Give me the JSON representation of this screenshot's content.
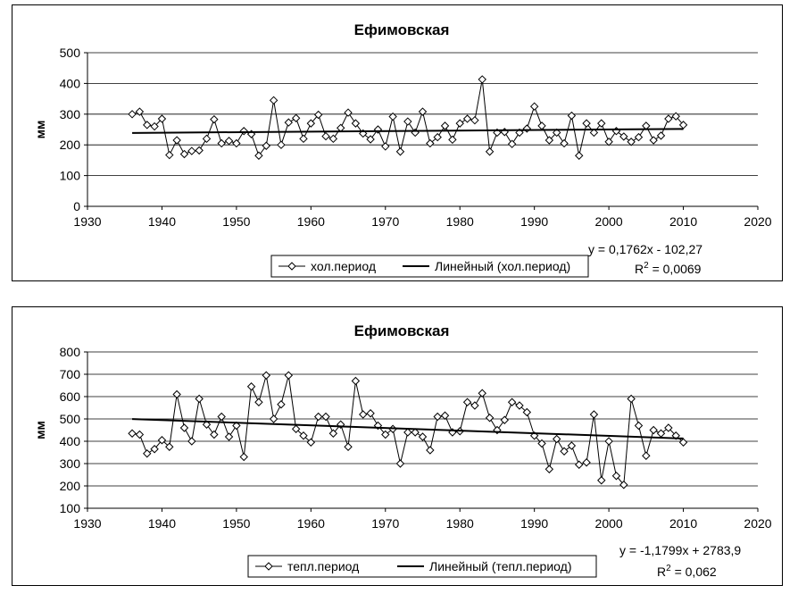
{
  "chart_data": [
    {
      "type": "line",
      "title": "Ефимовская",
      "ylabel": "мм",
      "xlabel": "",
      "xlim": [
        1930,
        2020
      ],
      "ylim": [
        0,
        500
      ],
      "x_ticks": [
        1930,
        1940,
        1950,
        1960,
        1970,
        1980,
        1990,
        2000,
        2010,
        2020
      ],
      "y_ticks": [
        0,
        100,
        200,
        300,
        400,
        500
      ],
      "grid": "horizontal",
      "legend": "bottom-center",
      "series": [
        {
          "name": "хол.период",
          "marker": "diamond",
          "color": "#000000",
          "x": [
            1936,
            1937,
            1938,
            1939,
            1940,
            1941,
            1942,
            1943,
            1944,
            1945,
            1946,
            1947,
            1948,
            1949,
            1950,
            1951,
            1952,
            1953,
            1954,
            1955,
            1956,
            1957,
            1958,
            1959,
            1960,
            1961,
            1962,
            1963,
            1964,
            1965,
            1966,
            1967,
            1968,
            1969,
            1970,
            1971,
            1972,
            1973,
            1974,
            1975,
            1976,
            1977,
            1978,
            1979,
            1980,
            1981,
            1982,
            1983,
            1984,
            1985,
            1986,
            1987,
            1988,
            1989,
            1990,
            1991,
            1992,
            1993,
            1994,
            1995,
            1996,
            1997,
            1998,
            1999,
            2000,
            2001,
            2002,
            2003,
            2004,
            2005,
            2006,
            2007,
            2008,
            2009,
            2010
          ],
          "y": [
            300,
            308,
            265,
            260,
            285,
            167,
            215,
            170,
            180,
            182,
            220,
            283,
            205,
            213,
            205,
            245,
            235,
            165,
            197,
            345,
            200,
            273,
            287,
            220,
            270,
            298,
            228,
            220,
            255,
            305,
            270,
            237,
            218,
            250,
            195,
            292,
            178,
            276,
            240,
            308,
            205,
            225,
            262,
            217,
            270,
            285,
            280,
            413,
            178,
            240,
            242,
            203,
            240,
            253,
            325,
            262,
            215,
            240,
            205,
            295,
            165,
            270,
            240,
            270,
            210,
            245,
            227,
            210,
            225,
            262,
            215,
            230,
            285,
            293,
            265
          ]
        },
        {
          "name": "Линейный (хол.период)",
          "type": "trend",
          "color": "#000000",
          "equation": {
            "slope": 0.1762,
            "intercept": -102.27
          },
          "x_range": [
            1936,
            2010
          ]
        }
      ],
      "equation_text": "y = 0,1762x - 102,27",
      "r2_prefix": "R",
      "r2_exp": "2",
      "r2_value": " = 0,0069"
    },
    {
      "type": "line",
      "title": "Ефимовская",
      "ylabel": "мм",
      "xlabel": "",
      "xlim": [
        1930,
        2020
      ],
      "ylim": [
        100,
        800
      ],
      "x_ticks": [
        1930,
        1940,
        1950,
        1960,
        1970,
        1980,
        1990,
        2000,
        2010,
        2020
      ],
      "y_ticks": [
        100,
        200,
        300,
        400,
        500,
        600,
        700,
        800
      ],
      "grid": "horizontal",
      "legend": "bottom-center",
      "series": [
        {
          "name": "тепл.период",
          "marker": "diamond",
          "color": "#000000",
          "x": [
            1936,
            1937,
            1938,
            1939,
            1940,
            1941,
            1942,
            1943,
            1944,
            1945,
            1946,
            1947,
            1948,
            1949,
            1950,
            1951,
            1952,
            1953,
            1954,
            1955,
            1956,
            1957,
            1958,
            1959,
            1960,
            1961,
            1962,
            1963,
            1964,
            1965,
            1966,
            1967,
            1968,
            1969,
            1970,
            1971,
            1972,
            1973,
            1974,
            1975,
            1976,
            1977,
            1978,
            1979,
            1980,
            1981,
            1982,
            1983,
            1984,
            1985,
            1986,
            1987,
            1988,
            1989,
            1990,
            1991,
            1992,
            1993,
            1994,
            1995,
            1996,
            1997,
            1998,
            1999,
            2000,
            2001,
            2002,
            2003,
            2004,
            2005,
            2006,
            2007,
            2008,
            2009,
            2010
          ],
          "y": [
            435,
            430,
            345,
            365,
            405,
            375,
            610,
            460,
            400,
            590,
            475,
            430,
            510,
            420,
            470,
            330,
            645,
            575,
            695,
            500,
            565,
            695,
            455,
            425,
            395,
            510,
            510,
            435,
            475,
            375,
            670,
            520,
            525,
            470,
            430,
            455,
            300,
            440,
            440,
            420,
            360,
            510,
            515,
            440,
            445,
            575,
            560,
            615,
            505,
            450,
            495,
            575,
            560,
            530,
            425,
            390,
            275,
            410,
            355,
            380,
            295,
            305,
            520,
            225,
            400,
            245,
            205,
            590,
            470,
            335,
            450,
            435,
            460,
            425,
            395
          ]
        },
        {
          "name": "Линейный (тепл.период)",
          "type": "trend",
          "color": "#000000",
          "equation": {
            "slope": -1.1799,
            "intercept": 2783.9
          },
          "x_range": [
            1936,
            2010
          ]
        }
      ],
      "equation_text": "y = -1,1799x + 2783,9",
      "r2_prefix": "R",
      "r2_exp": "2",
      "r2_value": " = 0,062"
    }
  ]
}
